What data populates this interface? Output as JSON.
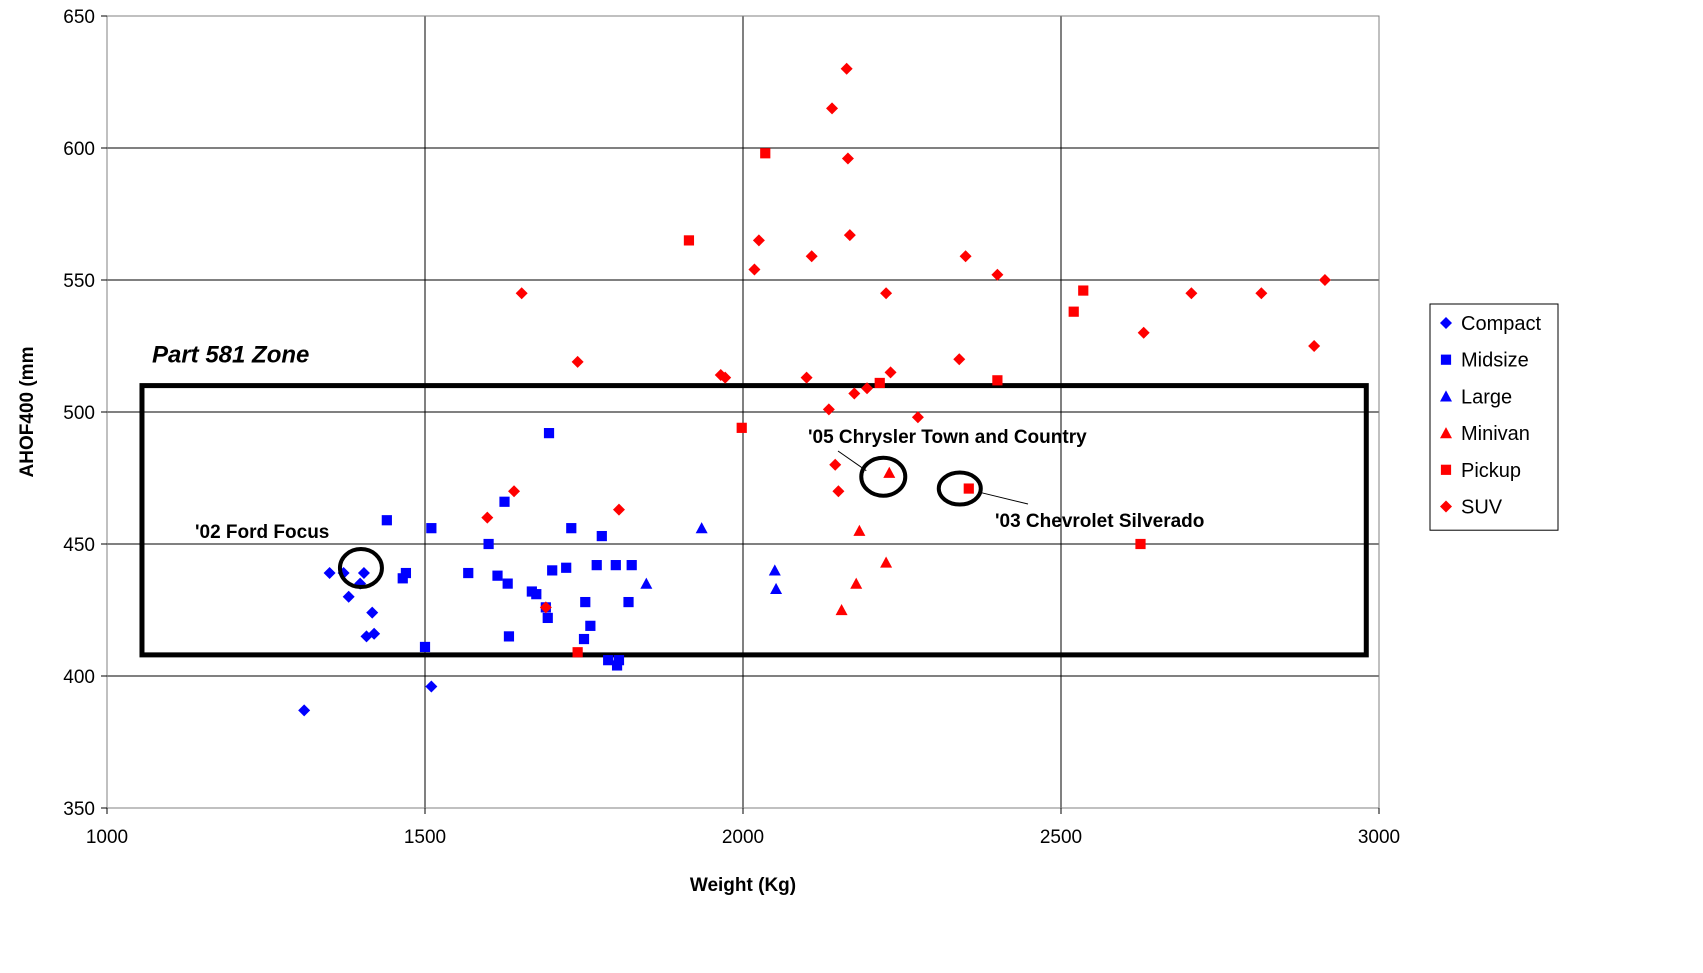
{
  "chart_data": {
    "type": "scatter",
    "xlabel": "Weight (Kg)",
    "ylabel": "AHOF400 (mm",
    "xlim": [
      1000,
      3000
    ],
    "ylim": [
      350,
      650
    ],
    "xticks": [
      1000,
      1500,
      2000,
      2500,
      3000
    ],
    "yticks": [
      350,
      400,
      450,
      500,
      550,
      600,
      650
    ],
    "grid": true,
    "legend_position": "right",
    "series": [
      {
        "name": "Compact",
        "color": "#0000ff",
        "marker": "diamond",
        "points": [
          [
            1310,
            387
          ],
          [
            1350,
            439
          ],
          [
            1372,
            439
          ],
          [
            1380,
            430
          ],
          [
            1398,
            435
          ],
          [
            1404,
            439
          ],
          [
            1408,
            415
          ],
          [
            1417,
            424
          ],
          [
            1420,
            416
          ],
          [
            1510,
            396
          ]
        ]
      },
      {
        "name": "Midsize",
        "color": "#0000ff",
        "marker": "square",
        "points": [
          [
            1440,
            459
          ],
          [
            1465,
            437
          ],
          [
            1470,
            439
          ],
          [
            1500,
            411
          ],
          [
            1510,
            456
          ],
          [
            1568,
            439
          ],
          [
            1600,
            450
          ],
          [
            1614,
            438
          ],
          [
            1625,
            466
          ],
          [
            1630,
            435
          ],
          [
            1632,
            415
          ],
          [
            1668,
            432
          ],
          [
            1675,
            431
          ],
          [
            1690,
            426
          ],
          [
            1693,
            422
          ],
          [
            1695,
            492
          ],
          [
            1700,
            440
          ],
          [
            1722,
            441
          ],
          [
            1730,
            456
          ],
          [
            1750,
            414
          ],
          [
            1752,
            428
          ],
          [
            1760,
            419
          ],
          [
            1770,
            442
          ],
          [
            1778,
            453
          ],
          [
            1788,
            406
          ],
          [
            1800,
            442
          ],
          [
            1802,
            404
          ],
          [
            1805,
            406
          ],
          [
            1820,
            428
          ],
          [
            1825,
            442
          ]
        ]
      },
      {
        "name": "Large",
        "color": "#0000ff",
        "marker": "triangle",
        "points": [
          [
            1848,
            435
          ],
          [
            1935,
            456
          ],
          [
            2050,
            440
          ],
          [
            2052,
            433
          ]
        ]
      },
      {
        "name": "Minivan",
        "color": "#ff0000",
        "marker": "triangle",
        "points": [
          [
            2155,
            425
          ],
          [
            2178,
            435
          ],
          [
            2183,
            455
          ],
          [
            2225,
            443
          ],
          [
            2230,
            477
          ]
        ]
      },
      {
        "name": "Pickup",
        "color": "#ff0000",
        "marker": "square",
        "points": [
          [
            1740,
            409
          ],
          [
            1915,
            565
          ],
          [
            1998,
            494
          ],
          [
            2035,
            598
          ],
          [
            2215,
            511
          ],
          [
            2355,
            471
          ],
          [
            2400,
            512
          ],
          [
            2520,
            538
          ],
          [
            2535,
            546
          ],
          [
            2625,
            450
          ]
        ]
      },
      {
        "name": "SUV",
        "color": "#ff0000",
        "marker": "diamond",
        "points": [
          [
            1598,
            460
          ],
          [
            1640,
            470
          ],
          [
            1652,
            545
          ],
          [
            1690,
            426
          ],
          [
            1740,
            519
          ],
          [
            1805,
            463
          ],
          [
            1965,
            514
          ],
          [
            1972,
            513
          ],
          [
            2018,
            554
          ],
          [
            2025,
            565
          ],
          [
            2100,
            513
          ],
          [
            2108,
            559
          ],
          [
            2135,
            501
          ],
          [
            2140,
            615
          ],
          [
            2145,
            480
          ],
          [
            2150,
            470
          ],
          [
            2163,
            630
          ],
          [
            2165,
            596
          ],
          [
            2168,
            567
          ],
          [
            2175,
            507
          ],
          [
            2195,
            509
          ],
          [
            2225,
            545
          ],
          [
            2232,
            515
          ],
          [
            2275,
            498
          ],
          [
            2340,
            520
          ],
          [
            2350,
            559
          ],
          [
            2400,
            552
          ],
          [
            2630,
            530
          ],
          [
            2705,
            545
          ],
          [
            2815,
            545
          ],
          [
            2898,
            525
          ],
          [
            2915,
            550
          ]
        ]
      }
    ],
    "zone": {
      "label": "Part 581 Zone",
      "x": [
        1055,
        2980
      ],
      "y": [
        408,
        510
      ]
    },
    "annotations": [
      {
        "text": "'02 Ford Focus",
        "point": [
          1404,
          439
        ]
      },
      {
        "text": "'05 Chrysler Town and Country",
        "point": [
          2230,
          477
        ]
      },
      {
        "text": "'03 Chevrolet Silverado",
        "point": [
          2355,
          471
        ]
      }
    ]
  }
}
